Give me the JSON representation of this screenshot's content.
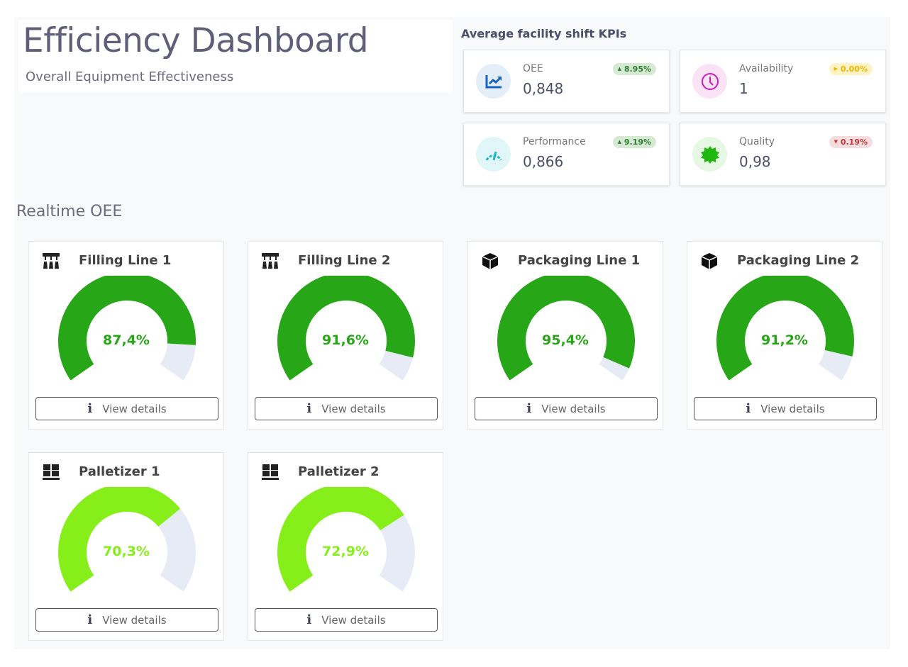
{
  "header": {
    "title": "Efficiency Dashboard",
    "subtitle": "Overall Equipment Effectiveness"
  },
  "kpis": {
    "heading": "Average facility shift KPIs",
    "items": [
      {
        "label": "OEE",
        "value": "0,848",
        "change": "8.95%",
        "trend": "up",
        "icon": "chart-trend-icon",
        "badge_bg": "#d6ead3",
        "badge_fg": "#2e7d32",
        "icon_bg": "#e3eef9"
      },
      {
        "label": "Availability",
        "value": "1",
        "change": "0.00%",
        "trend": "flat",
        "icon": "clock-icon",
        "badge_bg": "#fff3c4",
        "badge_fg": "#f0b400",
        "icon_bg": "#fbe3f6"
      },
      {
        "label": "Performance",
        "value": "0,866",
        "change": "9.19%",
        "trend": "up",
        "icon": "speedometer-icon",
        "badge_bg": "#d6ead3",
        "badge_fg": "#2e7d32",
        "icon_bg": "#e1f6f8"
      },
      {
        "label": "Quality",
        "value": "0,98",
        "change": "0.19%",
        "trend": "down",
        "icon": "quality-badge-icon",
        "badge_bg": "#f6dcdc",
        "badge_fg": "#c0393b",
        "icon_bg": "#e6f7e4"
      }
    ]
  },
  "realtime": {
    "heading": "Realtime OEE",
    "button_label": "View details",
    "lines": [
      {
        "name": "Filling Line 1",
        "value": 87.4,
        "label": "87,4%",
        "icon": "filling-machine-icon",
        "color": "#27a617"
      },
      {
        "name": "Filling Line 2",
        "value": 91.6,
        "label": "91,6%",
        "icon": "filling-machine-icon",
        "color": "#27a617"
      },
      {
        "name": "Packaging Line 1",
        "value": 95.4,
        "label": "95,4%",
        "icon": "box-icon",
        "color": "#27a617"
      },
      {
        "name": "Packaging Line 2",
        "value": 91.2,
        "label": "91,2%",
        "icon": "box-icon",
        "color": "#27a617"
      },
      {
        "name": "Palletizer 1",
        "value": 70.3,
        "label": "70,3%",
        "icon": "pallet-icon",
        "color": "#86ee19"
      },
      {
        "name": "Palletizer 2",
        "value": 72.9,
        "label": "72,9%",
        "icon": "pallet-icon",
        "color": "#86ee19"
      }
    ]
  },
  "colors": {
    "gauge_track": "#e6ebf5"
  }
}
